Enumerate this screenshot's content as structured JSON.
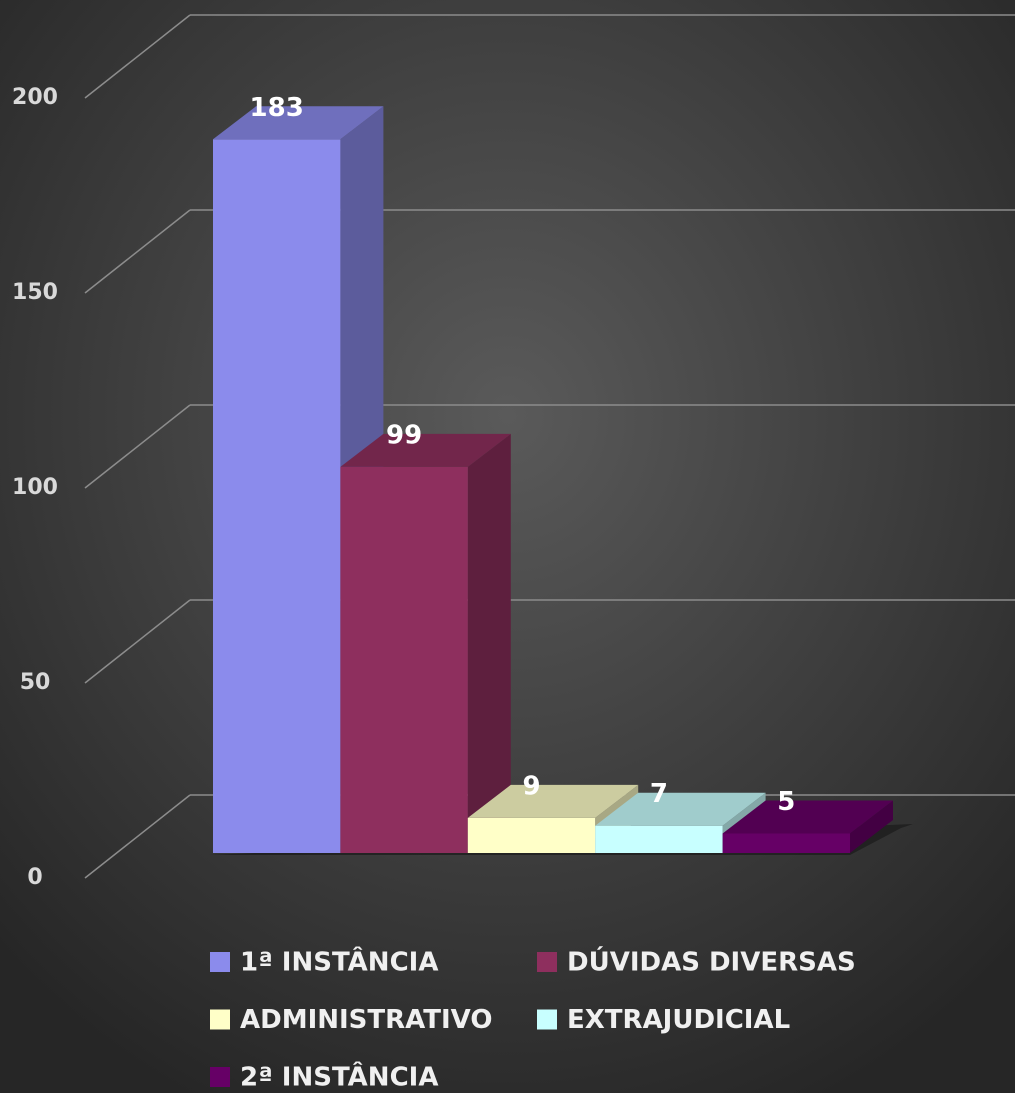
{
  "chart_data": {
    "type": "bar3d",
    "series": [
      {
        "name": "1ª INSTÂNCIA",
        "color": "#8b8bec",
        "values": [
          183
        ]
      },
      {
        "name": "DÚVIDAS DIVERSAS",
        "color": "#8e2f5e",
        "values": [
          99
        ]
      },
      {
        "name": "ADMINISTRATIVO",
        "color": "#ffffc8",
        "values": [
          9
        ]
      },
      {
        "name": "EXTRAJUDICIAL",
        "color": "#c8ffff",
        "values": [
          7
        ]
      },
      {
        "name": "2ª INSTÂNCIA",
        "color": "#660066",
        "values": [
          5
        ]
      }
    ],
    "ylim": [
      0,
      200
    ],
    "yticks": [
      0,
      50,
      100,
      150,
      200
    ],
    "grid": true,
    "legend": "bottom"
  }
}
